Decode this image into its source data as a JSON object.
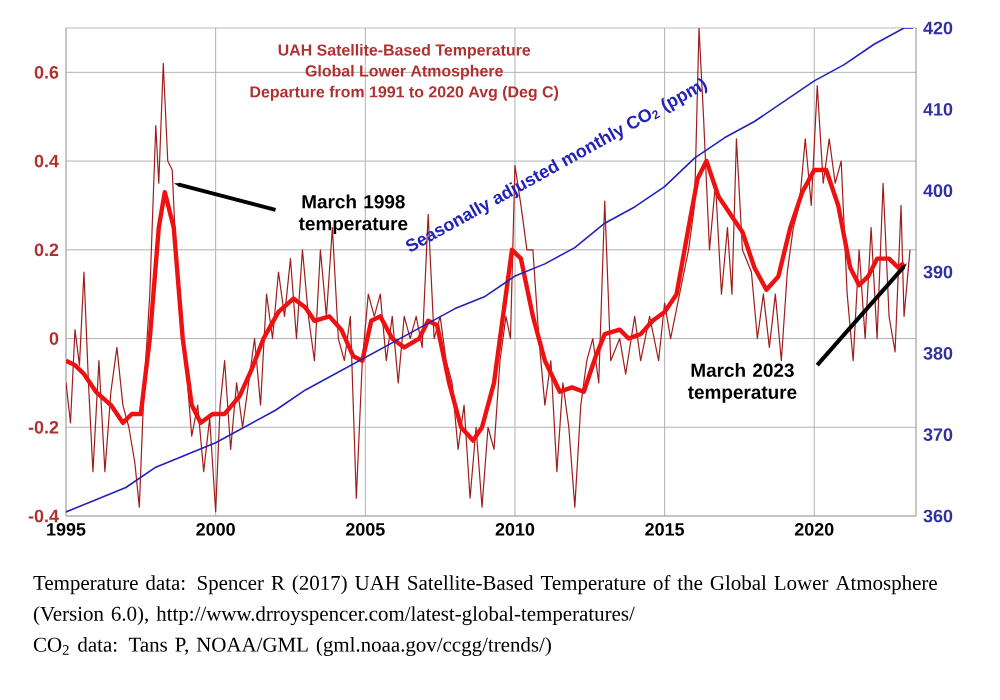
{
  "chart_data": {
    "type": "line",
    "title": "UAH Satellite-Based Temperature",
    "subtitle": "Global Lower Atmosphere",
    "xlim": [
      1995,
      2023.4
    ],
    "xticks": [
      1995,
      2000,
      2005,
      2010,
      2015,
      2020
    ],
    "ylim": [
      -0.4,
      0.7
    ],
    "yticks": [
      -0.4,
      -0.2,
      0,
      0.2,
      0.4,
      0.6
    ],
    "y2lim": [
      360,
      420
    ],
    "y2ticks": [
      360,
      370,
      380,
      390,
      400,
      410,
      420
    ],
    "grid": true,
    "series": [
      {
        "color": "#a01c1c",
        "x": [
          1995.0,
          1995.15,
          1995.3,
          1995.45,
          1995.6,
          1995.75,
          1995.9,
          1996.1,
          1996.3,
          1996.5,
          1996.7,
          1996.9,
          1997.1,
          1997.3,
          1997.45,
          1997.6,
          1997.8,
          1998.0,
          1998.1,
          1998.25,
          1998.4,
          1998.55,
          1998.7,
          1998.85,
          1999.0,
          1999.2,
          1999.4,
          1999.6,
          1999.8,
          2000.0,
          2000.15,
          2000.3,
          2000.5,
          2000.7,
          2000.9,
          2001.1,
          2001.3,
          2001.5,
          2001.7,
          2001.9,
          2002.1,
          2002.3,
          2002.5,
          2002.7,
          2002.9,
          2003.1,
          2003.3,
          2003.5,
          2003.7,
          2003.9,
          2004.1,
          2004.3,
          2004.5,
          2004.7,
          2004.9,
          2005.1,
          2005.3,
          2005.5,
          2005.7,
          2005.9,
          2006.1,
          2006.3,
          2006.5,
          2006.7,
          2006.9,
          2007.1,
          2007.3,
          2007.5,
          2007.7,
          2007.9,
          2008.1,
          2008.3,
          2008.5,
          2008.7,
          2008.9,
          2009.1,
          2009.3,
          2009.5,
          2009.7,
          2009.85,
          2010.0,
          2010.2,
          2010.4,
          2010.6,
          2010.8,
          2011.0,
          2011.2,
          2011.4,
          2011.6,
          2011.8,
          2012.0,
          2012.2,
          2012.4,
          2012.6,
          2012.8,
          2013.0,
          2013.2,
          2013.5,
          2013.7,
          2014.0,
          2014.2,
          2014.5,
          2014.8,
          2015.0,
          2015.2,
          2015.5,
          2015.8,
          2016.0,
          2016.15,
          2016.3,
          2016.5,
          2016.7,
          2016.9,
          2017.1,
          2017.25,
          2017.4,
          2017.6,
          2017.9,
          2018.1,
          2018.3,
          2018.5,
          2018.7,
          2018.9,
          2019.1,
          2019.3,
          2019.5,
          2019.7,
          2019.9,
          2020.1,
          2020.3,
          2020.5,
          2020.7,
          2020.9,
          2021.1,
          2021.3,
          2021.5,
          2021.7,
          2021.9,
          2022.1,
          2022.3,
          2022.5,
          2022.7,
          2022.9,
          2023.0,
          2023.2
        ],
        "values": [
          -0.1,
          -0.19,
          0.02,
          -0.06,
          0.15,
          -0.1,
          -0.3,
          -0.05,
          -0.3,
          -0.12,
          -0.02,
          -0.15,
          -0.2,
          -0.28,
          -0.38,
          -0.12,
          0.1,
          0.48,
          0.35,
          0.62,
          0.4,
          0.38,
          0.15,
          0.05,
          -0.05,
          -0.22,
          -0.15,
          -0.3,
          -0.18,
          -0.39,
          -0.15,
          -0.05,
          -0.25,
          -0.1,
          -0.2,
          -0.1,
          0.0,
          -0.15,
          0.1,
          0.0,
          0.15,
          0.05,
          0.18,
          0.0,
          0.2,
          0.05,
          -0.05,
          0.2,
          0.05,
          0.25,
          0.0,
          -0.05,
          0.05,
          -0.36,
          -0.05,
          0.1,
          0.05,
          0.1,
          -0.05,
          0.05,
          -0.1,
          0.05,
          0.0,
          0.05,
          -0.02,
          0.28,
          0.0,
          0.05,
          -0.05,
          -0.1,
          -0.25,
          -0.15,
          -0.36,
          -0.2,
          -0.38,
          -0.2,
          -0.25,
          -0.05,
          0.05,
          0.0,
          0.39,
          0.3,
          0.2,
          0.2,
          0.0,
          -0.15,
          -0.05,
          -0.3,
          -0.1,
          -0.2,
          -0.38,
          -0.15,
          -0.05,
          0.0,
          -0.1,
          0.31,
          -0.05,
          0.0,
          -0.08,
          0.05,
          -0.05,
          0.05,
          -0.05,
          0.08,
          0.0,
          0.1,
          0.2,
          0.3,
          0.7,
          0.5,
          0.2,
          0.35,
          0.1,
          0.25,
          0.1,
          0.45,
          0.2,
          0.15,
          0.0,
          0.1,
          -0.02,
          0.1,
          -0.05,
          0.15,
          0.25,
          0.3,
          0.45,
          0.3,
          0.57,
          0.35,
          0.45,
          0.35,
          0.4,
          0.1,
          -0.05,
          0.2,
          0.0,
          0.25,
          0.0,
          0.35,
          0.05,
          -0.03,
          0.3,
          0.05,
          0.2
        ]
      },
      {
        "color": "#ee1111",
        "x": [
          1995.0,
          1995.3,
          1995.6,
          1996.0,
          1996.5,
          1996.9,
          1997.2,
          1997.5,
          1997.8,
          1998.1,
          1998.3,
          1998.6,
          1998.9,
          1999.2,
          1999.5,
          1999.9,
          2000.3,
          2000.8,
          2001.2,
          2001.6,
          2002.1,
          2002.6,
          2003.0,
          2003.3,
          2003.8,
          2004.2,
          2004.6,
          2004.9,
          2005.2,
          2005.5,
          2005.9,
          2006.3,
          2006.8,
          2007.1,
          2007.4,
          2007.8,
          2008.2,
          2008.6,
          2008.9,
          2009.3,
          2009.6,
          2009.9,
          2010.2,
          2010.6,
          2011.0,
          2011.5,
          2011.9,
          2012.3,
          2012.7,
          2013.0,
          2013.5,
          2013.8,
          2014.2,
          2014.6,
          2015.0,
          2015.4,
          2015.8,
          2016.1,
          2016.4,
          2016.8,
          2017.3,
          2017.6,
          2018.0,
          2018.4,
          2018.8,
          2019.2,
          2019.6,
          2020.0,
          2020.4,
          2020.8,
          2021.2,
          2021.5,
          2021.8,
          2022.1,
          2022.5,
          2022.8,
          2023.0
        ],
        "values": [
          -0.05,
          -0.06,
          -0.08,
          -0.12,
          -0.15,
          -0.19,
          -0.17,
          -0.17,
          0.0,
          0.25,
          0.33,
          0.25,
          0.0,
          -0.15,
          -0.19,
          -0.17,
          -0.17,
          -0.13,
          -0.07,
          0.0,
          0.06,
          0.09,
          0.07,
          0.04,
          0.05,
          0.02,
          -0.04,
          -0.05,
          0.04,
          0.05,
          0.0,
          -0.02,
          0.0,
          0.04,
          0.03,
          -0.1,
          -0.2,
          -0.23,
          -0.2,
          -0.1,
          0.05,
          0.2,
          0.18,
          0.05,
          -0.05,
          -0.12,
          -0.11,
          -0.12,
          -0.04,
          0.01,
          0.02,
          0.0,
          0.01,
          0.04,
          0.06,
          0.1,
          0.25,
          0.36,
          0.4,
          0.32,
          0.27,
          0.24,
          0.16,
          0.11,
          0.14,
          0.25,
          0.33,
          0.38,
          0.38,
          0.3,
          0.16,
          0.12,
          0.14,
          0.18,
          0.18,
          0.16,
          0.17
        ]
      },
      {
        "name": "Seasonally adjusted monthly CO$_{2}$ (ppm)",
        "axis": "y2",
        "color": "#2222bb",
        "x": [
          1995.0,
          1996,
          1997,
          1998,
          1999,
          2000,
          2001,
          2002,
          2003,
          2004,
          2005,
          2006,
          2007,
          2008,
          2009,
          2010,
          2011,
          2012,
          2013,
          2014,
          2015,
          2016,
          2017,
          2018,
          2019,
          2020,
          2021,
          2022,
          2023.0,
          2023.3
        ],
        "values": [
          360.5,
          362,
          363.5,
          366,
          367.5,
          369,
          371,
          373,
          375.5,
          377.5,
          379.5,
          381.5,
          383.5,
          385.5,
          387,
          389.5,
          391,
          393,
          396,
          398,
          400.5,
          404,
          406.5,
          408.5,
          411,
          413.5,
          415.5,
          418,
          420,
          420
        ]
      }
    ],
    "annotations": [
      "Departure from 1991 to 2020 Avg (Deg C)",
      {
        "text": "March 1998 temperature",
        "x": 1998.6,
        "y": 0.35
      },
      {
        "text": "March 2023 temperature",
        "x": 2023.1,
        "y": 0.17
      },
      "Temperature data: Spencer R (2017) UAH Satellite-Based Temperature of the Global Lower Atmosphere (Version 6.0), http://www.drroyspencer.com/latest-global-temperatures/",
      "CO$_{2}$ data: Tans P, NOAA/GML (gml.noaa.gov/ccgg/trends/)"
    ]
  }
}
